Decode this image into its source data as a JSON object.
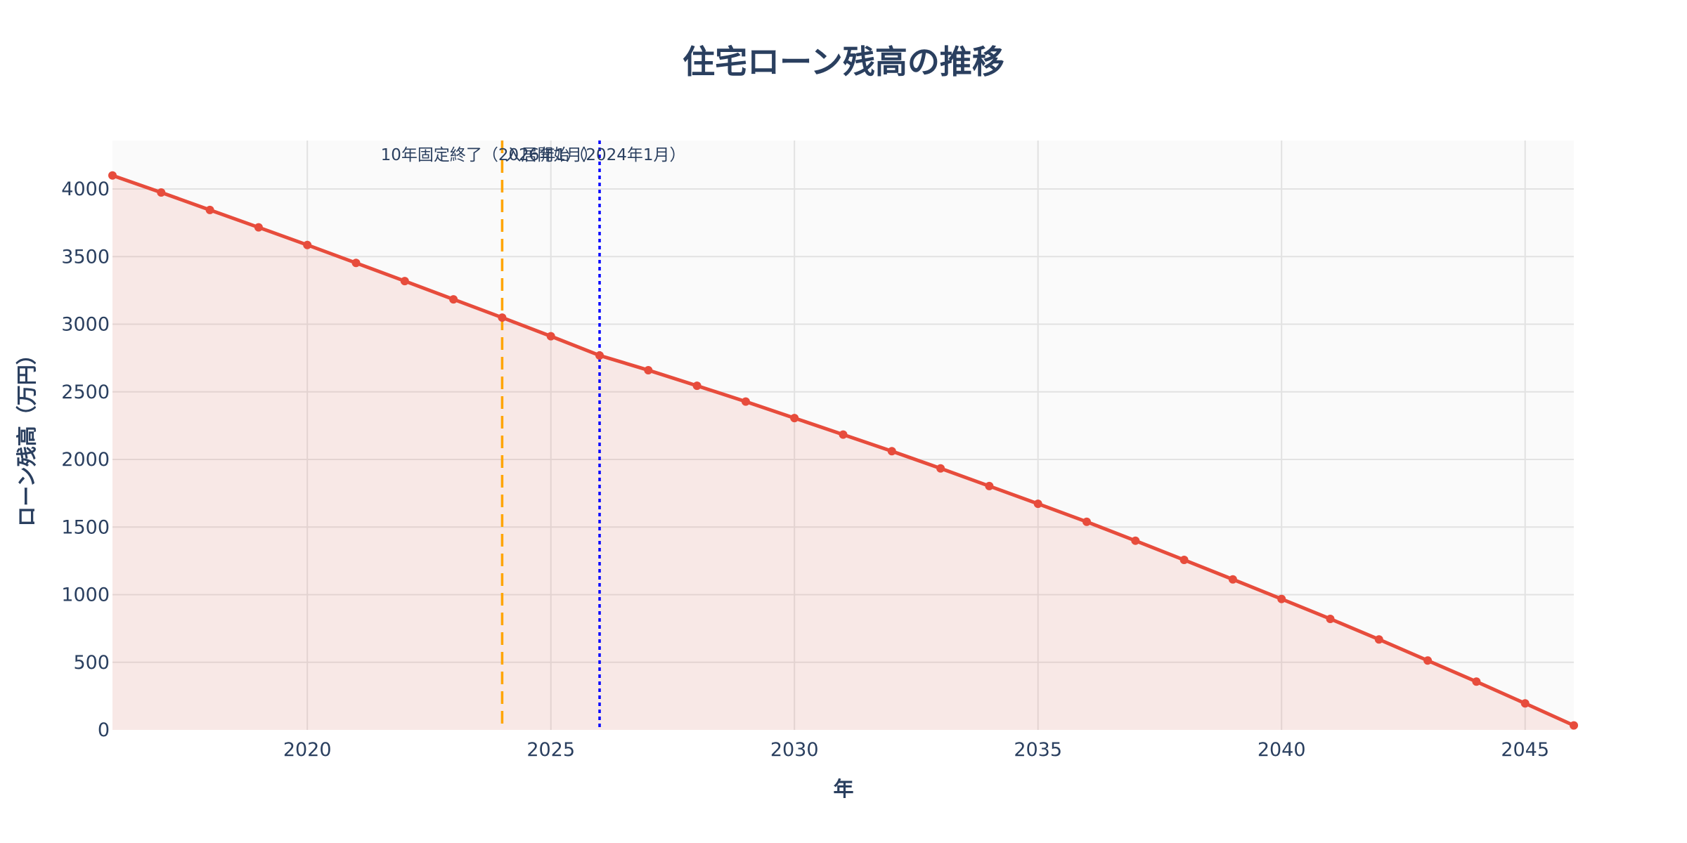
{
  "chart_data": {
    "type": "line",
    "title": "住宅ローン残高の推移",
    "xlabel": "年",
    "ylabel": "ローン残高（万円）",
    "x": [
      2016,
      2017,
      2018,
      2019,
      2020,
      2021,
      2022,
      2023,
      2024,
      2025,
      2026,
      2027,
      2028,
      2029,
      2030,
      2031,
      2032,
      2033,
      2034,
      2035,
      2036,
      2037,
      2038,
      2039,
      2040,
      2041,
      2042,
      2043,
      2044,
      2045,
      2046
    ],
    "series": [
      {
        "name": "ローン残高",
        "color": "#e74c3c",
        "fill": "tozeroy",
        "fill_color": "rgba(231,76,60,0.1)",
        "mode": "lines+markers",
        "values": [
          4100,
          3974,
          3845,
          3716,
          3586,
          3453,
          3319,
          3184,
          3049,
          2911,
          2769,
          2660,
          2545,
          2428,
          2306,
          2184,
          2061,
          1934,
          1803,
          1672,
          1539,
          1399,
          1257,
          1113,
          968,
          821,
          669,
          513,
          357,
          196,
          33
        ]
      }
    ],
    "xlim": [
      2016,
      2046
    ],
    "ylim": [
      0,
      4350
    ],
    "x_ticks": [
      2020,
      2025,
      2030,
      2035,
      2040,
      2045
    ],
    "y_ticks": [
      0,
      500,
      1000,
      1500,
      2000,
      2500,
      3000,
      3500,
      4000
    ],
    "grid": true,
    "legend": null,
    "annotations": [
      {
        "x": 2024,
        "text": "入居開始（2024年1月）",
        "line_color": "#ffa500",
        "line_style": "dash",
        "position": "top right"
      },
      {
        "x": 2026,
        "text": "10年固定終了（2026年1月）",
        "line_color": "#0000ff",
        "line_style": "dot",
        "position": "top left"
      }
    ]
  },
  "labels": {
    "title": "住宅ローン残高の推移",
    "xlabel": "年",
    "ylabel": "ローン残高（万円）"
  }
}
